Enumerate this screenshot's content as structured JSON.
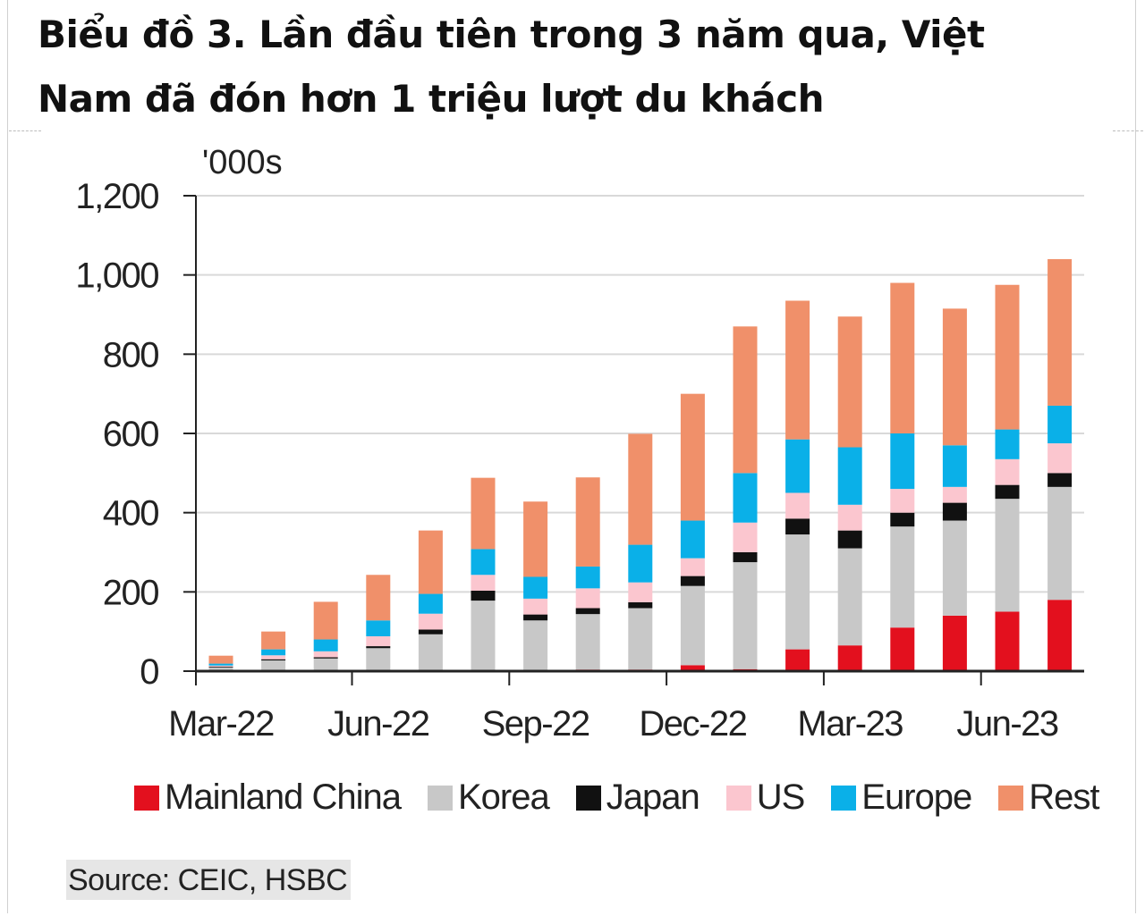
{
  "title": {
    "line1": "Biểu đồ 3. Lần đầu tiên trong 3 năm qua, Việt",
    "line2": "Nam đã đón hơn 1 triệu lượt du khách"
  },
  "source": "Source: CEIC, HSBC",
  "colors": {
    "Mainland China": "#e3101e",
    "Korea": "#c8c8c8",
    "Japan": "#111111",
    "US": "#fbc6cf",
    "Europe": "#0ab0e8",
    "Rest": "#f0906a"
  },
  "chart_data": {
    "type": "bar",
    "stacked": true,
    "unit_label": "'000s",
    "ylim": [
      0,
      1200
    ],
    "yticks": [
      0,
      200,
      400,
      600,
      800,
      1000,
      1200
    ],
    "ytick_labels": [
      "0",
      "200",
      "400",
      "600",
      "800",
      "1,000",
      "1,200"
    ],
    "x_tick_labels": [
      "Mar-22",
      "Jun-22",
      "Sep-22",
      "Dec-22",
      "Mar-23",
      "Jun-23"
    ],
    "grid": true,
    "legend_position": "bottom",
    "categories": [
      "Mar-22",
      "Apr-22",
      "May-22",
      "Jun-22",
      "Jul-22",
      "Aug-22",
      "Sep-22",
      "Oct-22",
      "Nov-22",
      "Dec-22",
      "Jan-23",
      "Feb-23",
      "Mar-23",
      "Apr-23",
      "May-23",
      "Jun-23",
      "Jul-23"
    ],
    "series": [
      {
        "name": "Mainland China",
        "values": [
          1,
          2,
          2,
          3,
          3,
          3,
          3,
          4,
          4,
          15,
          5,
          55,
          65,
          110,
          140,
          150,
          180
        ]
      },
      {
        "name": "Korea",
        "values": [
          8,
          25,
          30,
          55,
          90,
          175,
          125,
          140,
          155,
          200,
          270,
          290,
          245,
          255,
          240,
          285,
          285
        ]
      },
      {
        "name": "Japan",
        "values": [
          2,
          3,
          3,
          5,
          12,
          25,
          15,
          15,
          15,
          25,
          25,
          40,
          45,
          35,
          45,
          35,
          35
        ]
      },
      {
        "name": "US",
        "values": [
          3,
          10,
          15,
          25,
          40,
          40,
          40,
          50,
          50,
          45,
          75,
          65,
          65,
          60,
          40,
          65,
          75
        ]
      },
      {
        "name": "Europe",
        "values": [
          5,
          15,
          30,
          40,
          50,
          65,
          55,
          55,
          95,
          95,
          125,
          135,
          145,
          140,
          105,
          75,
          95
        ]
      },
      {
        "name": "Rest",
        "values": [
          20,
          45,
          95,
          115,
          160,
          180,
          190,
          225,
          280,
          320,
          370,
          350,
          330,
          380,
          345,
          365,
          370
        ]
      }
    ]
  }
}
